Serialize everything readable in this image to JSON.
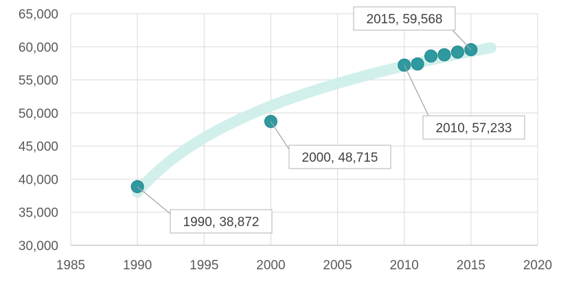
{
  "chart_data": {
    "type": "scatter",
    "title": "",
    "xlabel": "",
    "ylabel": "",
    "xlim": [
      1985,
      2020
    ],
    "ylim": [
      30000,
      65000
    ],
    "x_ticks": [
      1985,
      1990,
      1995,
      2000,
      2005,
      2010,
      2015,
      2020
    ],
    "y_ticks": [
      30000,
      35000,
      40000,
      45000,
      50000,
      55000,
      60000,
      65000
    ],
    "x_tick_labels": [
      "1985",
      "1990",
      "1995",
      "2000",
      "2005",
      "2010",
      "2015",
      "2020"
    ],
    "y_tick_labels": [
      "30,000",
      "35,000",
      "40,000",
      "45,000",
      "50,000",
      "55,000",
      "60,000",
      "65,000"
    ],
    "grid": true,
    "legend": "none",
    "trendline": true,
    "points": [
      {
        "x": 1990,
        "y": 38872
      },
      {
        "x": 2000,
        "y": 48715
      },
      {
        "x": 2010,
        "y": 57233
      },
      {
        "x": 2011,
        "y": 57400
      },
      {
        "x": 2012,
        "y": 58600
      },
      {
        "x": 2013,
        "y": 58800
      },
      {
        "x": 2014,
        "y": 59200
      },
      {
        "x": 2015,
        "y": 59568
      }
    ],
    "data_labels": [
      {
        "x": 1990,
        "y": 38872,
        "text": "1990, 38,872"
      },
      {
        "x": 2000,
        "y": 48715,
        "text": "2000, 48,715"
      },
      {
        "x": 2010,
        "y": 57233,
        "text": "2010, 57,233"
      },
      {
        "x": 2015,
        "y": 59568,
        "text": "2015, 59,568"
      }
    ],
    "colors": {
      "marker": "#2e9aa0",
      "marker_stroke": "#1f7f86",
      "trendline": "#cdeee9",
      "grid": "#d9d9d9",
      "axis": "#bfbfbf"
    }
  }
}
